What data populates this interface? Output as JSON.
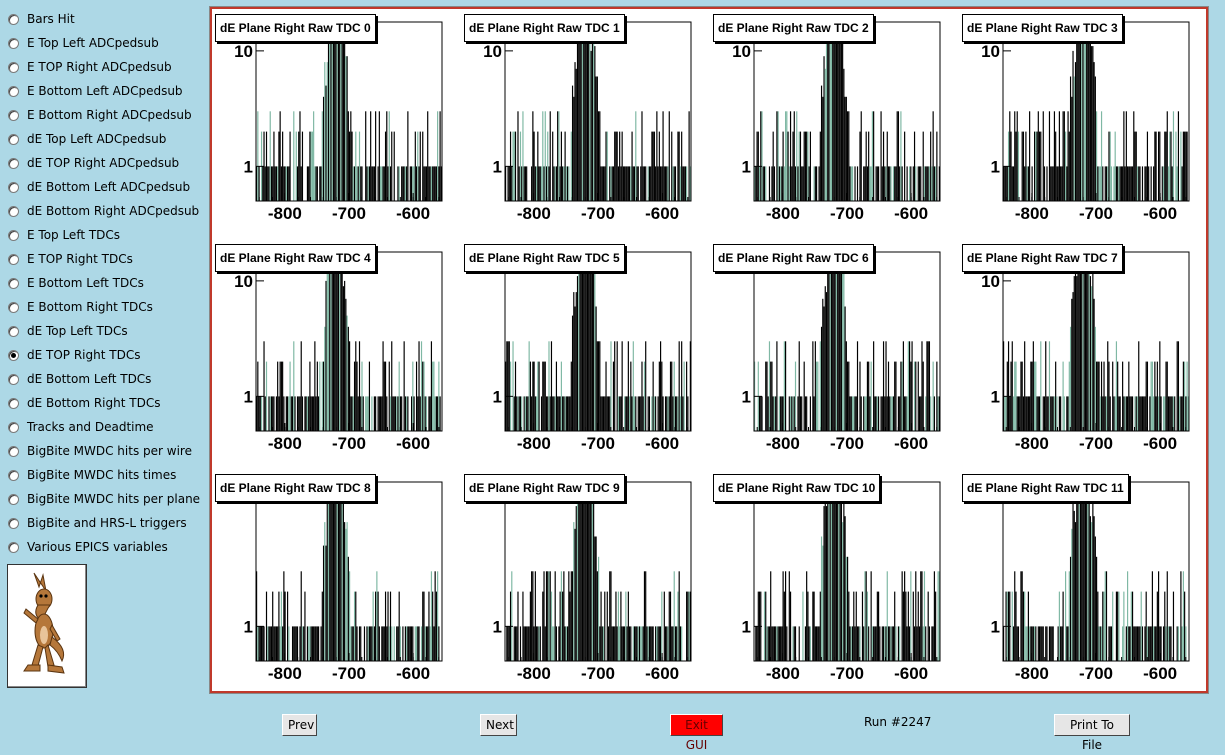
{
  "sidebar": {
    "items": [
      {
        "label": "Bars Hit",
        "checked": false
      },
      {
        "label": "E Top Left ADCpedsub",
        "checked": false
      },
      {
        "label": "E TOP Right ADCpedsub",
        "checked": false
      },
      {
        "label": "E Bottom Left ADCpedsub",
        "checked": false
      },
      {
        "label": "E Bottom Right ADCpedsub",
        "checked": false
      },
      {
        "label": "dE Top Left ADCpedsub",
        "checked": false
      },
      {
        "label": "dE TOP Right ADCpedsub",
        "checked": false
      },
      {
        "label": "dE Bottom Left ADCpedsub",
        "checked": false
      },
      {
        "label": "dE Bottom Right ADCpedsub",
        "checked": false
      },
      {
        "label": "E Top Left TDCs",
        "checked": false
      },
      {
        "label": "E TOP Right TDCs",
        "checked": false
      },
      {
        "label": "E Bottom Left TDCs",
        "checked": false
      },
      {
        "label": "E Bottom Right TDCs",
        "checked": false
      },
      {
        "label": "dE Top Left TDCs",
        "checked": false
      },
      {
        "label": "dE TOP Right TDCs",
        "checked": true
      },
      {
        "label": "dE Bottom Left TDCs",
        "checked": false
      },
      {
        "label": "dE Bottom Right TDCs",
        "checked": false
      },
      {
        "label": "Tracks and Deadtime",
        "checked": false
      },
      {
        "label": "BigBite MWDC hits per wire",
        "checked": false
      },
      {
        "label": "BigBite MWDC hits times",
        "checked": false
      },
      {
        "label": "BigBite MWDC hits per plane",
        "checked": false
      },
      {
        "label": "BigBite and HRS-L triggers",
        "checked": false
      },
      {
        "label": "Various EPICS variables",
        "checked": false
      }
    ]
  },
  "toolbar": {
    "prev_label": "Prev",
    "next_label": "Next",
    "exit_label": "Exit GUI",
    "run_label": "Run #2247",
    "print_label": "Print To File"
  },
  "colors": {
    "background": "#add8e6",
    "accent_border": "#c0392b",
    "histogram_fill": "#7fb8a4",
    "exit_button": "#ff0000"
  },
  "chart_data": [
    {
      "type": "bar",
      "title": "dE Plane Right Raw TDC 0",
      "xticks": [
        "-800",
        "-700",
        "-600"
      ],
      "xlim": [
        -845,
        -555
      ],
      "yscale": "log",
      "yticks": [
        "1",
        "10"
      ]
    },
    {
      "type": "bar",
      "title": "dE Plane Right Raw TDC 1",
      "xticks": [
        "-800",
        "-700",
        "-600"
      ],
      "xlim": [
        -845,
        -555
      ],
      "yscale": "log",
      "yticks": [
        "1",
        "10"
      ]
    },
    {
      "type": "bar",
      "title": "dE Plane Right Raw TDC 2",
      "xticks": [
        "-800",
        "-700",
        "-600"
      ],
      "xlim": [
        -845,
        -555
      ],
      "yscale": "log",
      "yticks": [
        "1",
        "10"
      ]
    },
    {
      "type": "bar",
      "title": "dE Plane Right Raw TDC 3",
      "xticks": [
        "-800",
        "-700",
        "-600"
      ],
      "xlim": [
        -845,
        -555
      ],
      "yscale": "log",
      "yticks": [
        "1",
        "10"
      ]
    },
    {
      "type": "bar",
      "title": "dE Plane Right Raw TDC 4",
      "xticks": [
        "-800",
        "-700",
        "-600"
      ],
      "xlim": [
        -845,
        -555
      ],
      "yscale": "log",
      "yticks": [
        "1",
        "10"
      ]
    },
    {
      "type": "bar",
      "title": "dE Plane Right Raw TDC 5",
      "xticks": [
        "-800",
        "-700",
        "-600"
      ],
      "xlim": [
        -845,
        -555
      ],
      "yscale": "log",
      "yticks": [
        "1"
      ]
    },
    {
      "type": "bar",
      "title": "dE Plane Right Raw TDC 6",
      "xticks": [
        "-800",
        "-700",
        "-600"
      ],
      "xlim": [
        -845,
        -555
      ],
      "yscale": "log",
      "yticks": [
        "1"
      ]
    },
    {
      "type": "bar",
      "title": "dE Plane Right Raw TDC 7",
      "xticks": [
        "-800",
        "-700",
        "-600"
      ],
      "xlim": [
        -845,
        -555
      ],
      "yscale": "log",
      "yticks": [
        "1",
        "10"
      ]
    },
    {
      "type": "bar",
      "title": "dE Plane Right Raw TDC 8",
      "xticks": [
        "-800",
        "-700",
        "-600"
      ],
      "xlim": [
        -845,
        -555
      ],
      "yscale": "log",
      "yticks": [
        "1"
      ]
    },
    {
      "type": "bar",
      "title": "dE Plane Right Raw TDC 9",
      "xticks": [
        "-800",
        "-700",
        "-600"
      ],
      "xlim": [
        -845,
        -555
      ],
      "yscale": "log",
      "yticks": [
        "1"
      ]
    },
    {
      "type": "bar",
      "title": "dE Plane Right Raw TDC 10",
      "xticks": [
        "-800",
        "-700",
        "-600"
      ],
      "xlim": [
        -845,
        -555
      ],
      "yscale": "log",
      "yticks": [
        "1"
      ]
    },
    {
      "type": "bar",
      "title": "dE Plane Right Raw TDC 11",
      "xticks": [
        "-800",
        "-700",
        "-600"
      ],
      "xlim": [
        -845,
        -555
      ],
      "yscale": "log",
      "yticks": [
        "1"
      ]
    }
  ]
}
